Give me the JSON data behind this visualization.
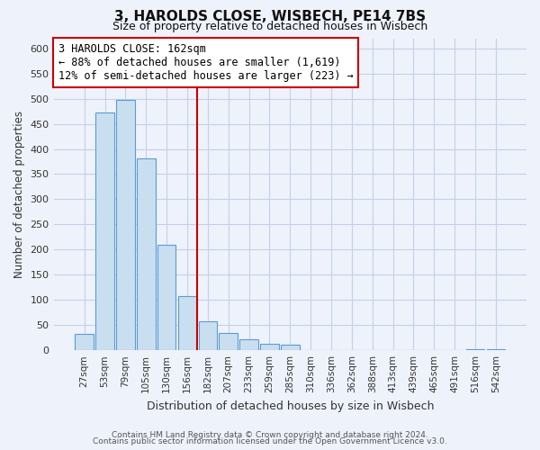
{
  "title1": "3, HAROLDS CLOSE, WISBECH, PE14 7BS",
  "title2": "Size of property relative to detached houses in Wisbech",
  "xlabel": "Distribution of detached houses by size in Wisbech",
  "ylabel": "Number of detached properties",
  "bar_labels": [
    "27sqm",
    "53sqm",
    "79sqm",
    "105sqm",
    "130sqm",
    "156sqm",
    "182sqm",
    "207sqm",
    "233sqm",
    "259sqm",
    "285sqm",
    "310sqm",
    "336sqm",
    "362sqm",
    "388sqm",
    "413sqm",
    "439sqm",
    "465sqm",
    "491sqm",
    "516sqm",
    "542sqm"
  ],
  "bar_values": [
    32,
    473,
    497,
    382,
    210,
    107,
    57,
    35,
    21,
    13,
    11,
    0,
    0,
    0,
    0,
    0,
    0,
    0,
    0,
    2,
    2
  ],
  "bar_color": "#c9dff0",
  "bar_edge_color": "#5b9bd5",
  "vline_x_idx": 5.5,
  "vline_color": "#cc0000",
  "annotation_text": "3 HAROLDS CLOSE: 162sqm\n← 88% of detached houses are smaller (1,619)\n12% of semi-detached houses are larger (223) →",
  "annotation_box_color": "#ffffff",
  "annotation_box_edge": "#cc0000",
  "ylim": [
    0,
    620
  ],
  "yticks": [
    0,
    50,
    100,
    150,
    200,
    250,
    300,
    350,
    400,
    450,
    500,
    550,
    600
  ],
  "footer1": "Contains HM Land Registry data © Crown copyright and database right 2024.",
  "footer2": "Contains public sector information licensed under the Open Government Licence v3.0.",
  "bg_color": "#eef2fb",
  "plot_bg_color": "#eef2fb",
  "grid_color": "#c5cfe8"
}
